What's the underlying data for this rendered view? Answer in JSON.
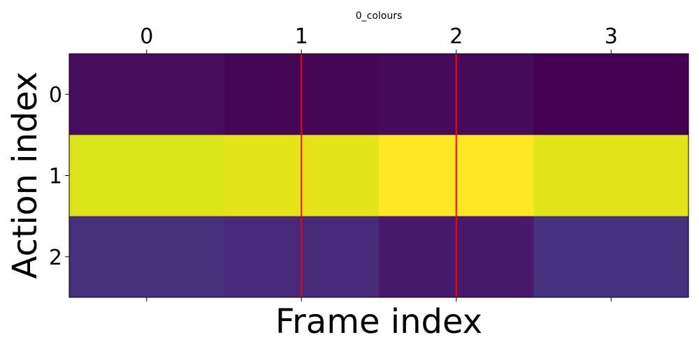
{
  "chart_data": {
    "type": "heatmap",
    "title": "0_colours",
    "xlabel": "Frame index",
    "ylabel": "Action index",
    "x_categories": [
      "0",
      "1",
      "2",
      "3"
    ],
    "y_categories": [
      "0",
      "1",
      "2"
    ],
    "x_tick_position": "top",
    "colormap": "viridis",
    "grid": false,
    "legend": "none",
    "cells": [
      [
        "#470e5d",
        "#450656",
        "#460a5b",
        "#440154"
      ],
      [
        "#dbe319",
        "#e5e418",
        "#fde725",
        "#e0e419"
      ],
      [
        "#46307c",
        "#472a79",
        "#48196b",
        "#453380"
      ]
    ],
    "vertical_lines": {
      "x": [
        1,
        2
      ],
      "color": "#ff0000"
    }
  }
}
